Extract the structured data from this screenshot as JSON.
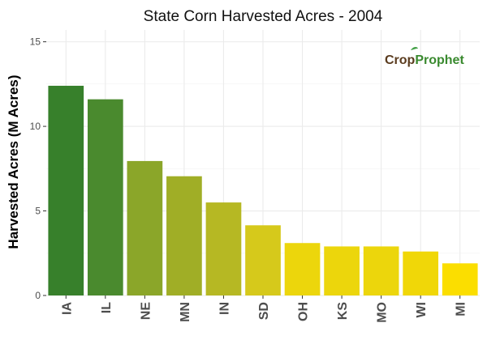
{
  "chart_data": {
    "type": "bar",
    "title": "State Corn Harvested Acres - 2004",
    "xlabel": "",
    "ylabel": "Harvested Acres (M Acres)",
    "ylim": [
      0,
      15.7
    ],
    "yticks": [
      0,
      5,
      10,
      15
    ],
    "grid": true,
    "categories": [
      "IA",
      "IL",
      "NE",
      "MN",
      "IN",
      "SD",
      "OH",
      "KS",
      "MO",
      "WI",
      "MI"
    ],
    "values": [
      12.4,
      11.6,
      7.95,
      7.05,
      5.5,
      4.15,
      3.1,
      2.9,
      2.9,
      2.6,
      1.9
    ],
    "colors": [
      "#37802b",
      "#4a8a2e",
      "#8ba629",
      "#a0ae26",
      "#b6b823",
      "#d6c91b",
      "#ecd60c",
      "#ecd60c",
      "#ecd60c",
      "#f0d708",
      "#fbde00"
    ]
  },
  "logo": {
    "part1": "Crop",
    "part2": "Prophet",
    "color1": "#5a3b1e",
    "color2": "#3a8a2f",
    "leaf_color": "#43a047"
  }
}
